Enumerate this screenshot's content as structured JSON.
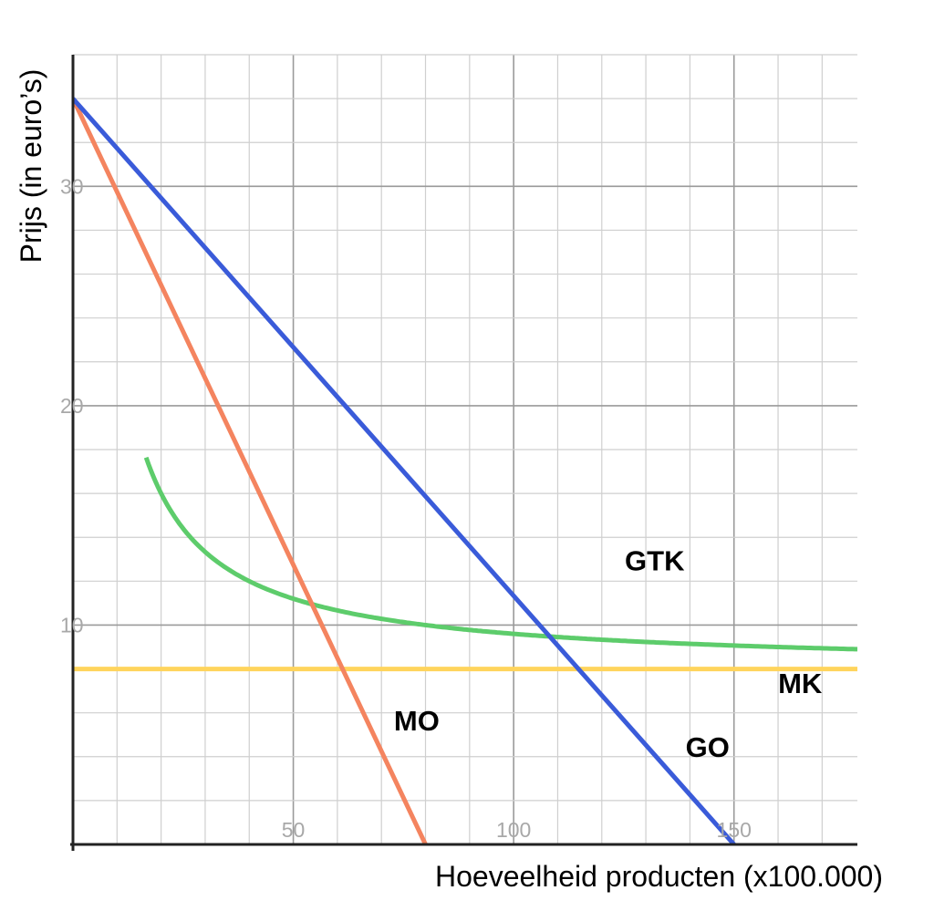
{
  "chart_data": {
    "type": "line",
    "xlabel": "Hoeveelheid producten (x100.000)",
    "ylabel": "Prijs (in euro’s)",
    "xlim": [
      0,
      178
    ],
    "ylim": [
      0,
      36
    ],
    "x_ticks": [
      50,
      100,
      150
    ],
    "y_ticks": [
      10,
      20,
      30
    ],
    "x_tick_labels": [
      "50",
      "100",
      "150"
    ],
    "y_tick_labels": [
      "10",
      "20",
      "30"
    ],
    "grid": true,
    "minor_grid_step": {
      "x": 10,
      "y": 2
    },
    "series": [
      {
        "name": "GO",
        "color": "#3a5bd9",
        "kind": "linear",
        "points": [
          [
            0,
            34
          ],
          [
            150,
            0
          ]
        ],
        "label_at": [
          144,
          4
        ]
      },
      {
        "name": "MO",
        "color": "#f4845f",
        "kind": "linear",
        "points": [
          [
            0,
            34
          ],
          [
            80,
            0
          ]
        ],
        "label_at": [
          78,
          5.2
        ]
      },
      {
        "name": "MK",
        "color": "#ffd45c",
        "kind": "linear",
        "points": [
          [
            0,
            8
          ],
          [
            178,
            8
          ]
        ],
        "label_at": [
          165,
          6.9
        ]
      },
      {
        "name": "GTK",
        "color": "#5dcc6b",
        "kind": "average_cost",
        "fixed_cost": 160,
        "variable_cost": 8,
        "x_range": [
          16.6,
          178
        ],
        "label_at": [
          132,
          12.5
        ]
      }
    ]
  }
}
